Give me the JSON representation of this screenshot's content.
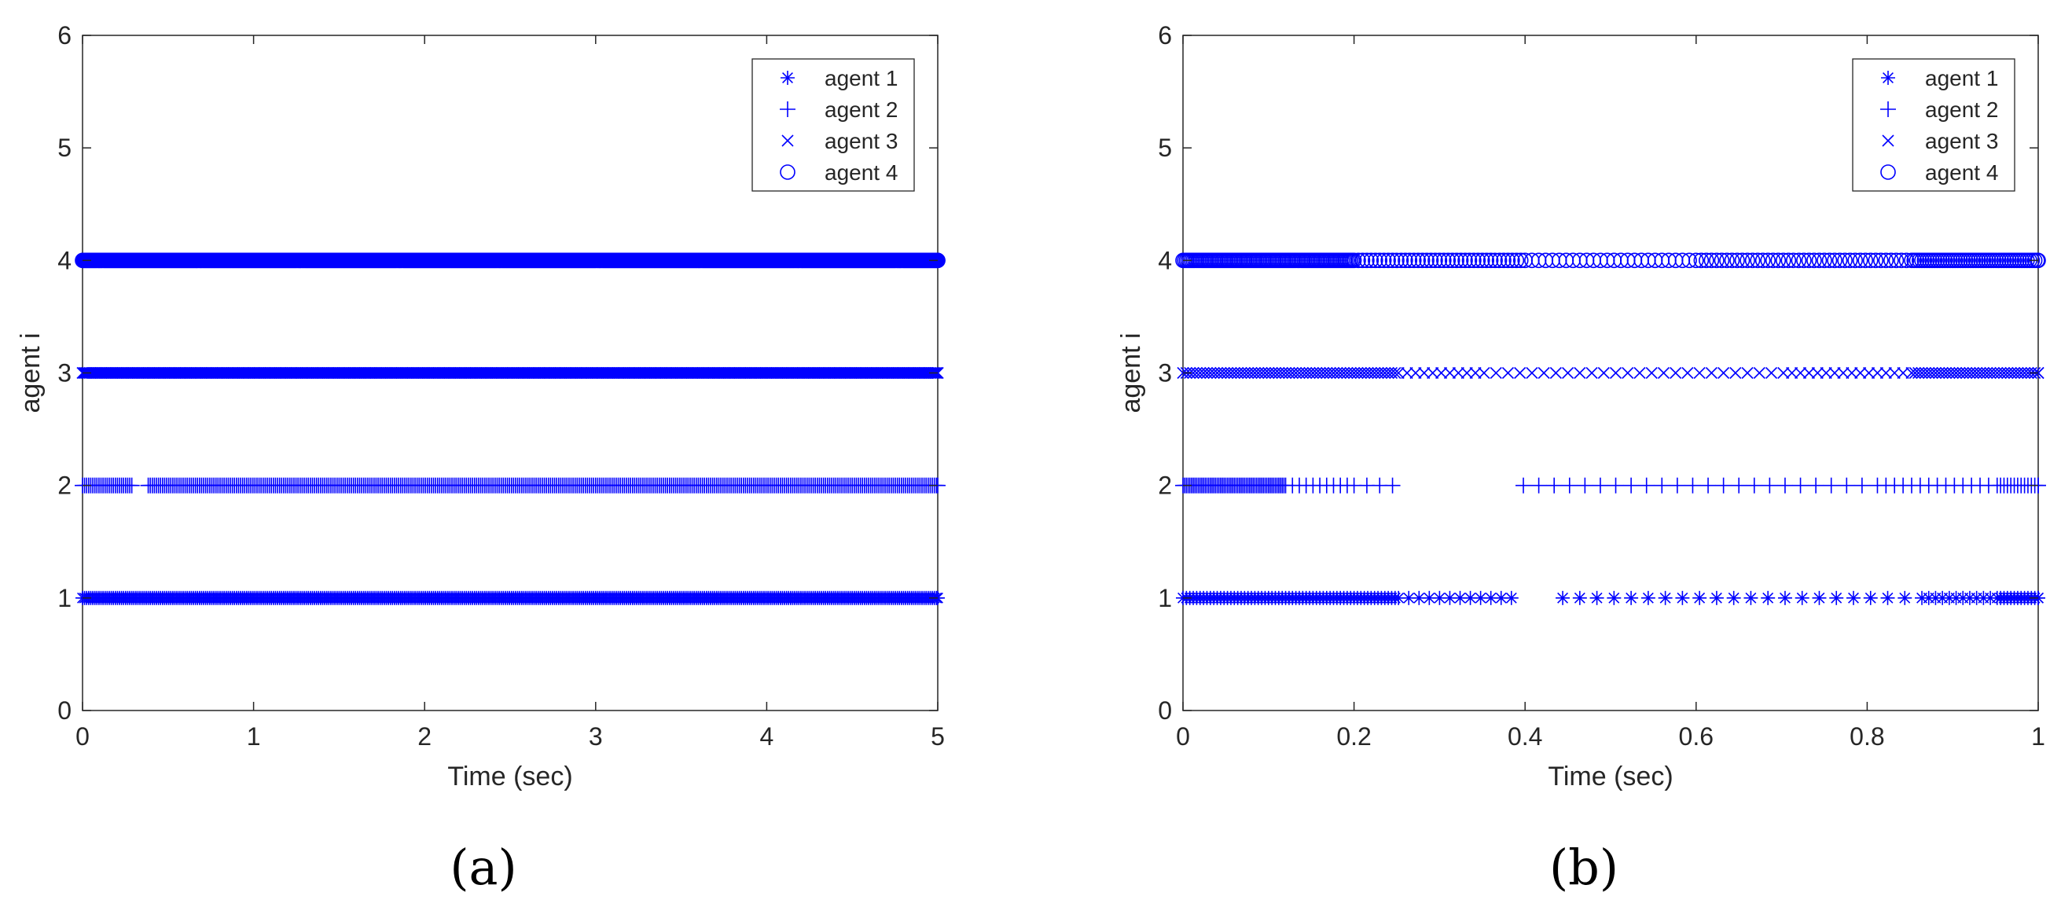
{
  "captions": [
    "(a)",
    "(b)"
  ],
  "chart_data": [
    {
      "type": "scatter",
      "panel": "(a)",
      "xlabel": "Time (sec)",
      "ylabel": "agent i",
      "xlim": [
        0,
        5
      ],
      "ylim": [
        0,
        6
      ],
      "xticks": [
        0,
        1,
        2,
        3,
        4,
        5
      ],
      "xtick_labels": [
        "0",
        "1",
        "2",
        "3",
        "4",
        "5"
      ],
      "yticks": [
        0,
        1,
        2,
        3,
        4,
        5,
        6
      ],
      "ytick_labels": [
        "0",
        "1",
        "2",
        "3",
        "4",
        "5",
        "6"
      ],
      "grid": false,
      "legend_position": "top-right",
      "marker_color": "#0000ff",
      "series": [
        {
          "name": "agent 1",
          "marker": "asterisk",
          "y": 1,
          "x_start": 0,
          "x_end": 5,
          "mean_interval": 0.012
        },
        {
          "name": "agent 2",
          "marker": "plus",
          "y": 2,
          "x_start": 0,
          "x_end": 5,
          "mean_interval": 0.012,
          "gaps": [
            [
              0.3,
              0.38
            ]
          ]
        },
        {
          "name": "agent 3",
          "marker": "x",
          "y": 3,
          "x_start": 0,
          "x_end": 5,
          "mean_interval": 0.008
        },
        {
          "name": "agent 4",
          "marker": "circle",
          "y": 4,
          "x_start": 0,
          "x_end": 5,
          "mean_interval": 0.004
        }
      ]
    },
    {
      "type": "scatter",
      "panel": "(b)",
      "xlabel": "Time (sec)",
      "ylabel": "agent i",
      "xlim": [
        0,
        1
      ],
      "ylim": [
        0,
        6
      ],
      "xticks": [
        0,
        0.2,
        0.4,
        0.6,
        0.8,
        1
      ],
      "xtick_labels": [
        "0",
        "0.2",
        "0.4",
        "0.6",
        "0.8",
        "1"
      ],
      "yticks": [
        0,
        1,
        2,
        3,
        4,
        5,
        6
      ],
      "ytick_labels": [
        "0",
        "1",
        "2",
        "3",
        "4",
        "5",
        "6"
      ],
      "grid": false,
      "legend_position": "top-right",
      "marker_color": "#0000ff",
      "series": [
        {
          "name": "agent 1",
          "marker": "asterisk",
          "y": 1,
          "x_start": 0,
          "x_end": 1,
          "spacing": [
            [
              0,
              0.004
            ],
            [
              0.25,
              0.012
            ],
            [
              0.38,
              0.02
            ],
            [
              0.85,
              0.008
            ],
            [
              0.95,
              0.004
            ]
          ],
          "gaps": [
            [
              0.395,
              0.44
            ]
          ]
        },
        {
          "name": "agent 2",
          "marker": "plus",
          "y": 2,
          "x_start": 0,
          "x_end": 1,
          "spacing": [
            [
              0,
              0.002
            ],
            [
              0.12,
              0.008
            ],
            [
              0.2,
              0.015
            ],
            [
              0.38,
              0.018
            ],
            [
              0.8,
              0.01
            ],
            [
              0.95,
              0.004
            ]
          ],
          "gaps": [
            [
              0.25,
              0.265
            ],
            [
              0.275,
              0.385
            ]
          ]
        },
        {
          "name": "agent 3",
          "marker": "x",
          "y": 3,
          "x_start": 0,
          "x_end": 1,
          "spacing": [
            [
              0,
              0.004
            ],
            [
              0.25,
              0.01
            ],
            [
              0.35,
              0.014
            ],
            [
              0.7,
              0.01
            ],
            [
              0.85,
              0.004
            ]
          ]
        },
        {
          "name": "agent 4",
          "marker": "circle",
          "y": 4,
          "x_start": 0,
          "x_end": 1,
          "spacing": [
            [
              0,
              0.002
            ],
            [
              0.2,
              0.005
            ],
            [
              0.4,
              0.008
            ],
            [
              0.6,
              0.006
            ],
            [
              0.85,
              0.003
            ]
          ]
        }
      ]
    }
  ]
}
